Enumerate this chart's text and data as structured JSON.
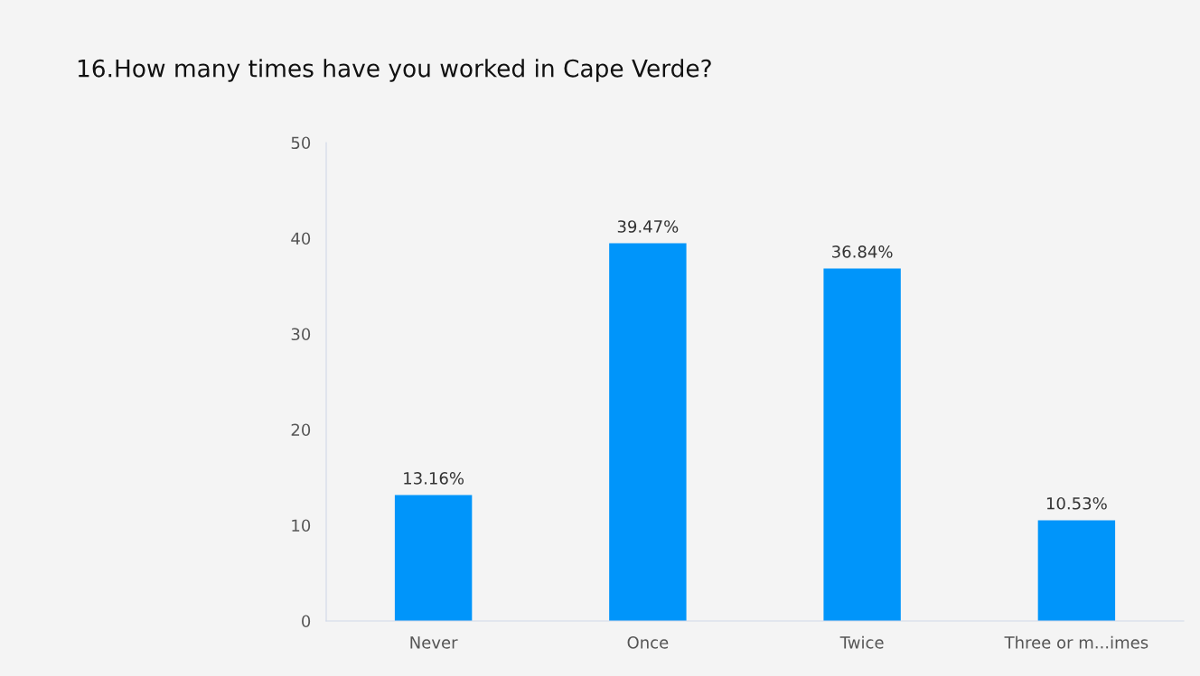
{
  "chart_data": {
    "type": "bar",
    "title": "16.How many times have you worked in Cape Verde?",
    "categories": [
      "Never",
      "Once",
      "Twice",
      "Three or m...imes"
    ],
    "values": [
      13.16,
      39.47,
      36.84,
      10.53
    ],
    "value_labels": [
      "13.16%",
      "39.47%",
      "36.84%",
      "10.53%"
    ],
    "color": "#0095fa",
    "ylim": [
      0,
      50
    ],
    "yticks": [
      0,
      10,
      20,
      30,
      40,
      50
    ],
    "grid": false,
    "legend": false
  }
}
